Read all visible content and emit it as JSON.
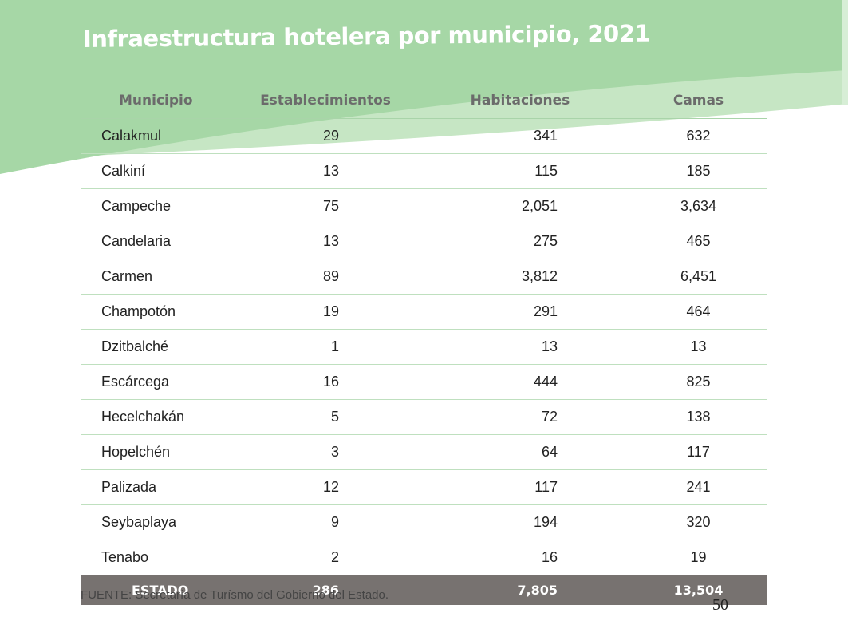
{
  "title": "Infraestructura hotelera por municipio, 2021",
  "colors": {
    "band_dark": "#a6d7a6",
    "band_light": "#c6e6c4",
    "total_row": "#777270"
  },
  "table": {
    "headers": [
      "Municipio",
      "Establecimientos",
      "Habitaciones",
      "Camas"
    ],
    "rows": [
      {
        "municipio": "Calakmul",
        "establecimientos": "29",
        "habitaciones": "341",
        "camas": "632"
      },
      {
        "municipio": "Calkiní",
        "establecimientos": "13",
        "habitaciones": "115",
        "camas": "185"
      },
      {
        "municipio": "Campeche",
        "establecimientos": "75",
        "habitaciones": "2,051",
        "camas": "3,634"
      },
      {
        "municipio": "Candelaria",
        "establecimientos": "13",
        "habitaciones": "275",
        "camas": "465"
      },
      {
        "municipio": "Carmen",
        "establecimientos": "89",
        "habitaciones": "3,812",
        "camas": "6,451"
      },
      {
        "municipio": "Champotón",
        "establecimientos": "19",
        "habitaciones": "291",
        "camas": "464"
      },
      {
        "municipio": "Dzitbalché",
        "establecimientos": "1",
        "habitaciones": "13",
        "camas": "13"
      },
      {
        "municipio": "Escárcega",
        "establecimientos": "16",
        "habitaciones": "444",
        "camas": "825"
      },
      {
        "municipio": "Hecelchakán",
        "establecimientos": "5",
        "habitaciones": "72",
        "camas": "138"
      },
      {
        "municipio": "Hopelchén",
        "establecimientos": "3",
        "habitaciones": "64",
        "camas": "117"
      },
      {
        "municipio": "Palizada",
        "establecimientos": "12",
        "habitaciones": "117",
        "camas": "241"
      },
      {
        "municipio": "Seybaplaya",
        "establecimientos": "9",
        "habitaciones": "194",
        "camas": "320"
      },
      {
        "municipio": "Tenabo",
        "establecimientos": "2",
        "habitaciones": "16",
        "camas": "19"
      }
    ],
    "total": {
      "municipio": "ESTADO",
      "establecimientos": "286",
      "habitaciones": "7,805",
      "camas": "13,504"
    }
  },
  "source": "FUENTE: Secretaría de Turísmo del Gobierno del Estado.",
  "page_number": "50"
}
